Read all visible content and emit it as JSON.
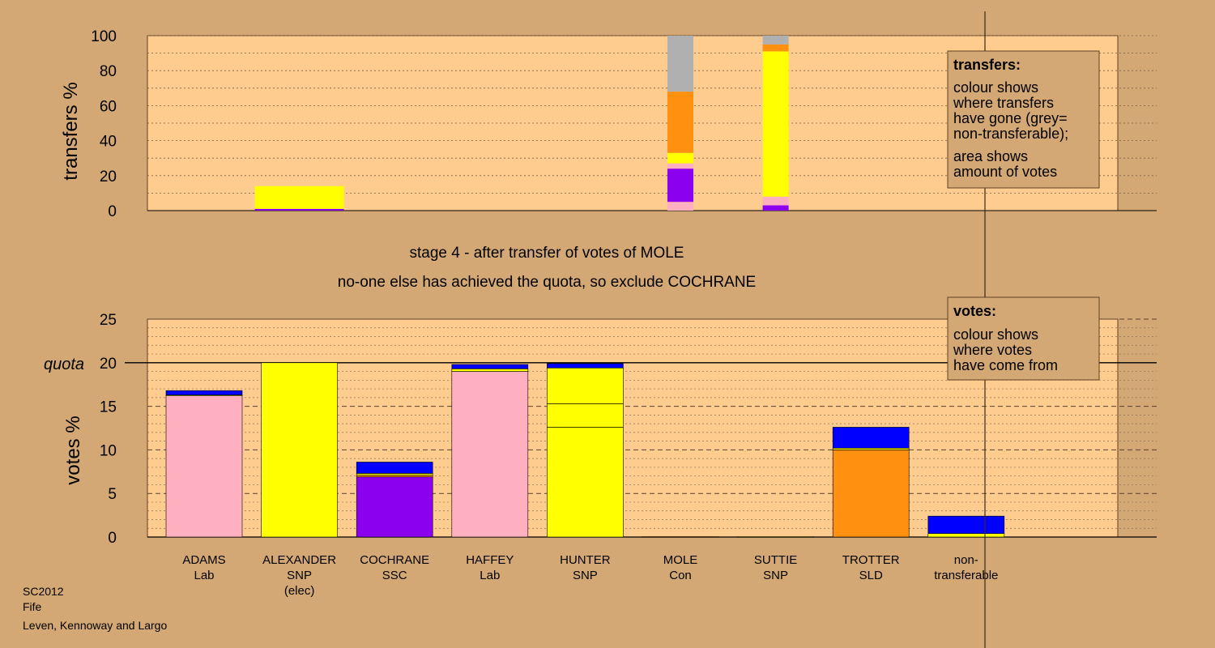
{
  "footer": {
    "line1": "SC2012",
    "line2": "Fife",
    "line3": "Leven, Kennoway and Largo"
  },
  "stage_text": {
    "title": "stage 4 - after transfer of votes of MOLE",
    "subtitle": "no-one else has achieved the quota, so exclude COCHRANE"
  },
  "legends": {
    "transfers": {
      "title": "transfers:",
      "lines": [
        "colour shows",
        "where transfers",
        "have gone (grey=",
        "non-transferable);",
        "area shows",
        "amount of votes"
      ]
    },
    "votes": {
      "title": "votes:",
      "lines": [
        "colour shows",
        "where votes",
        "have come from"
      ]
    }
  },
  "colors": {
    "background": "#d4a874",
    "plot_bg": "#ffcc8f",
    "Lab": "#ffb0c0",
    "SNP": "#ffff00",
    "SSC": "#8b00ee",
    "SLD": "#ff9010",
    "transfer_blue": "#0000ff",
    "nontransferable": "#b0b0b0"
  },
  "chart_data": [
    {
      "type": "bar",
      "stacked": true,
      "name": "transfers",
      "ylabel": "transfers %",
      "ylim": [
        0,
        100
      ],
      "yticks": [
        0,
        20,
        40,
        60,
        80,
        100
      ],
      "grid": true,
      "categories": [
        "ADAMS Lab",
        "ALEXANDER SNP (elec)",
        "COCHRANE SSC",
        "HAFFEY Lab",
        "HUNTER SNP",
        "MOLE Con",
        "SUTTIE SNP",
        "TROTTER SLD",
        "non-transferable"
      ],
      "bars": [
        {
          "category": "ALEXANDER SNP (elec)",
          "segments": [
            {
              "color": "#8b00ee",
              "value": 1
            },
            {
              "color": "#ffff00",
              "value": 13
            }
          ]
        },
        {
          "category": "MOLE Con",
          "segments": [
            {
              "color": "#ffb0c0",
              "value": 5
            },
            {
              "color": "#8b00ee",
              "value": 19
            },
            {
              "color": "#ffb0c0",
              "value": 3
            },
            {
              "color": "#ffff00",
              "value": 6
            },
            {
              "color": "#ff9010",
              "value": 35
            },
            {
              "color": "#b0b0b0",
              "value": 32
            }
          ]
        },
        {
          "category": "SUTTIE SNP",
          "segments": [
            {
              "color": "#8b00ee",
              "value": 3
            },
            {
              "color": "#ffb0c0",
              "value": 5
            },
            {
              "color": "#ffff00",
              "value": 83
            },
            {
              "color": "#ff9010",
              "value": 4
            },
            {
              "color": "#b0b0b0",
              "value": 5
            }
          ]
        }
      ]
    },
    {
      "type": "bar",
      "stacked": true,
      "name": "votes",
      "ylabel": "votes %",
      "ylim": [
        0,
        25
      ],
      "yticks": [
        0,
        5,
        10,
        15,
        20,
        25
      ],
      "quota": 20,
      "quota_label": "quota",
      "grid": true,
      "categories": [
        {
          "name": "ADAMS",
          "party": "Lab",
          "note": ""
        },
        {
          "name": "ALEXANDER",
          "party": "SNP",
          "note": "(elec)"
        },
        {
          "name": "COCHRANE",
          "party": "SSC",
          "note": ""
        },
        {
          "name": "HAFFEY",
          "party": "Lab",
          "note": ""
        },
        {
          "name": "HUNTER",
          "party": "SNP",
          "note": ""
        },
        {
          "name": "MOLE",
          "party": "Con",
          "note": ""
        },
        {
          "name": "SUTTIE",
          "party": "SNP",
          "note": ""
        },
        {
          "name": "TROTTER",
          "party": "SLD",
          "note": ""
        },
        {
          "name": "non-",
          "party": "transferable",
          "note": ""
        }
      ],
      "bars": [
        {
          "category": "ADAMS",
          "segments": [
            {
              "color": "#ffb0c0",
              "value": 16.2
            },
            {
              "color": "#ffff00",
              "value": 0.1
            },
            {
              "color": "#0000ff",
              "value": 0.5
            }
          ]
        },
        {
          "category": "ALEXANDER",
          "segments": [
            {
              "color": "#ffff00",
              "value": 20.0
            }
          ]
        },
        {
          "category": "COCHRANE",
          "segments": [
            {
              "color": "#8b00ee",
              "value": 6.9
            },
            {
              "color": "#ff9010",
              "value": 0.2
            },
            {
              "color": "#ffff00",
              "value": 0.2
            },
            {
              "color": "#0000ff",
              "value": 1.3
            }
          ]
        },
        {
          "category": "HAFFEY",
          "segments": [
            {
              "color": "#ffb0c0",
              "value": 19.0
            },
            {
              "color": "#ffff00",
              "value": 0.3
            },
            {
              "color": "#0000ff",
              "value": 0.5
            }
          ]
        },
        {
          "category": "HUNTER",
          "segments": [
            {
              "color": "#ffff00",
              "value": 12.6
            },
            {
              "color": "#ffff00",
              "value": 2.7
            },
            {
              "color": "#ffff00",
              "value": 4.1
            },
            {
              "color": "#0000ff",
              "value": 0.5
            }
          ]
        },
        {
          "category": "MOLE",
          "segments": [
            {
              "color": "#ff9010",
              "value": 0.05
            }
          ]
        },
        {
          "category": "SUTTIE",
          "segments": [
            {
              "color": "#ffff00",
              "value": 0.05
            }
          ]
        },
        {
          "category": "TROTTER",
          "segments": [
            {
              "color": "#ff9010",
              "value": 10.0
            },
            {
              "color": "#ffff00",
              "value": 0.2
            },
            {
              "color": "#0000ff",
              "value": 2.4
            }
          ]
        },
        {
          "category": "non-",
          "segments": [
            {
              "color": "#ffff00",
              "value": 0.4
            },
            {
              "color": "#0000ff",
              "value": 2.0
            }
          ]
        }
      ]
    }
  ]
}
